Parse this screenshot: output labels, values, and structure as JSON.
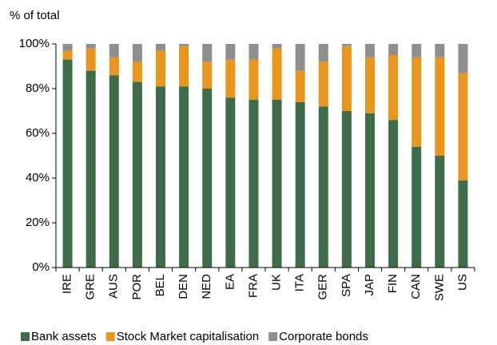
{
  "chart_data": {
    "type": "stacked_bar",
    "y_axis_label": "% of total",
    "categories": [
      "IRE",
      "GRE",
      "AUS",
      "POR",
      "BEL",
      "DEN",
      "NED",
      "EA",
      "FRA",
      "UK",
      "ITA",
      "GER",
      "SPA",
      "JAP",
      "FIN",
      "CAN",
      "SWE",
      "US"
    ],
    "series": [
      {
        "name": "Bank assets",
        "color": "#3e6b48",
        "values": [
          93,
          88,
          86,
          83,
          81,
          81,
          80,
          76,
          75,
          75,
          74,
          72,
          70,
          69,
          66,
          54,
          50,
          39
        ]
      },
      {
        "name": "Stock Market capitalisation",
        "color": "#e8961e",
        "values": [
          4,
          10,
          8,
          9,
          16,
          18,
          12,
          17,
          18,
          23,
          14,
          20,
          29,
          25,
          29,
          40,
          44,
          48
        ]
      },
      {
        "name": "Corporate bonds",
        "color": "#8e8e8e",
        "values": [
          3,
          2,
          6,
          8,
          3,
          1,
          8,
          7,
          7,
          2,
          12,
          8,
          1,
          6,
          5,
          6,
          6,
          13
        ]
      }
    ],
    "ylim": [
      0,
      100
    ],
    "yticks": [
      {
        "value": 0,
        "label": "0%"
      },
      {
        "value": 20,
        "label": "20%"
      },
      {
        "value": 40,
        "label": "40%"
      },
      {
        "value": 60,
        "label": "60%"
      },
      {
        "value": 80,
        "label": "80%"
      },
      {
        "value": 100,
        "label": "100%"
      }
    ],
    "legend": "bottom"
  }
}
